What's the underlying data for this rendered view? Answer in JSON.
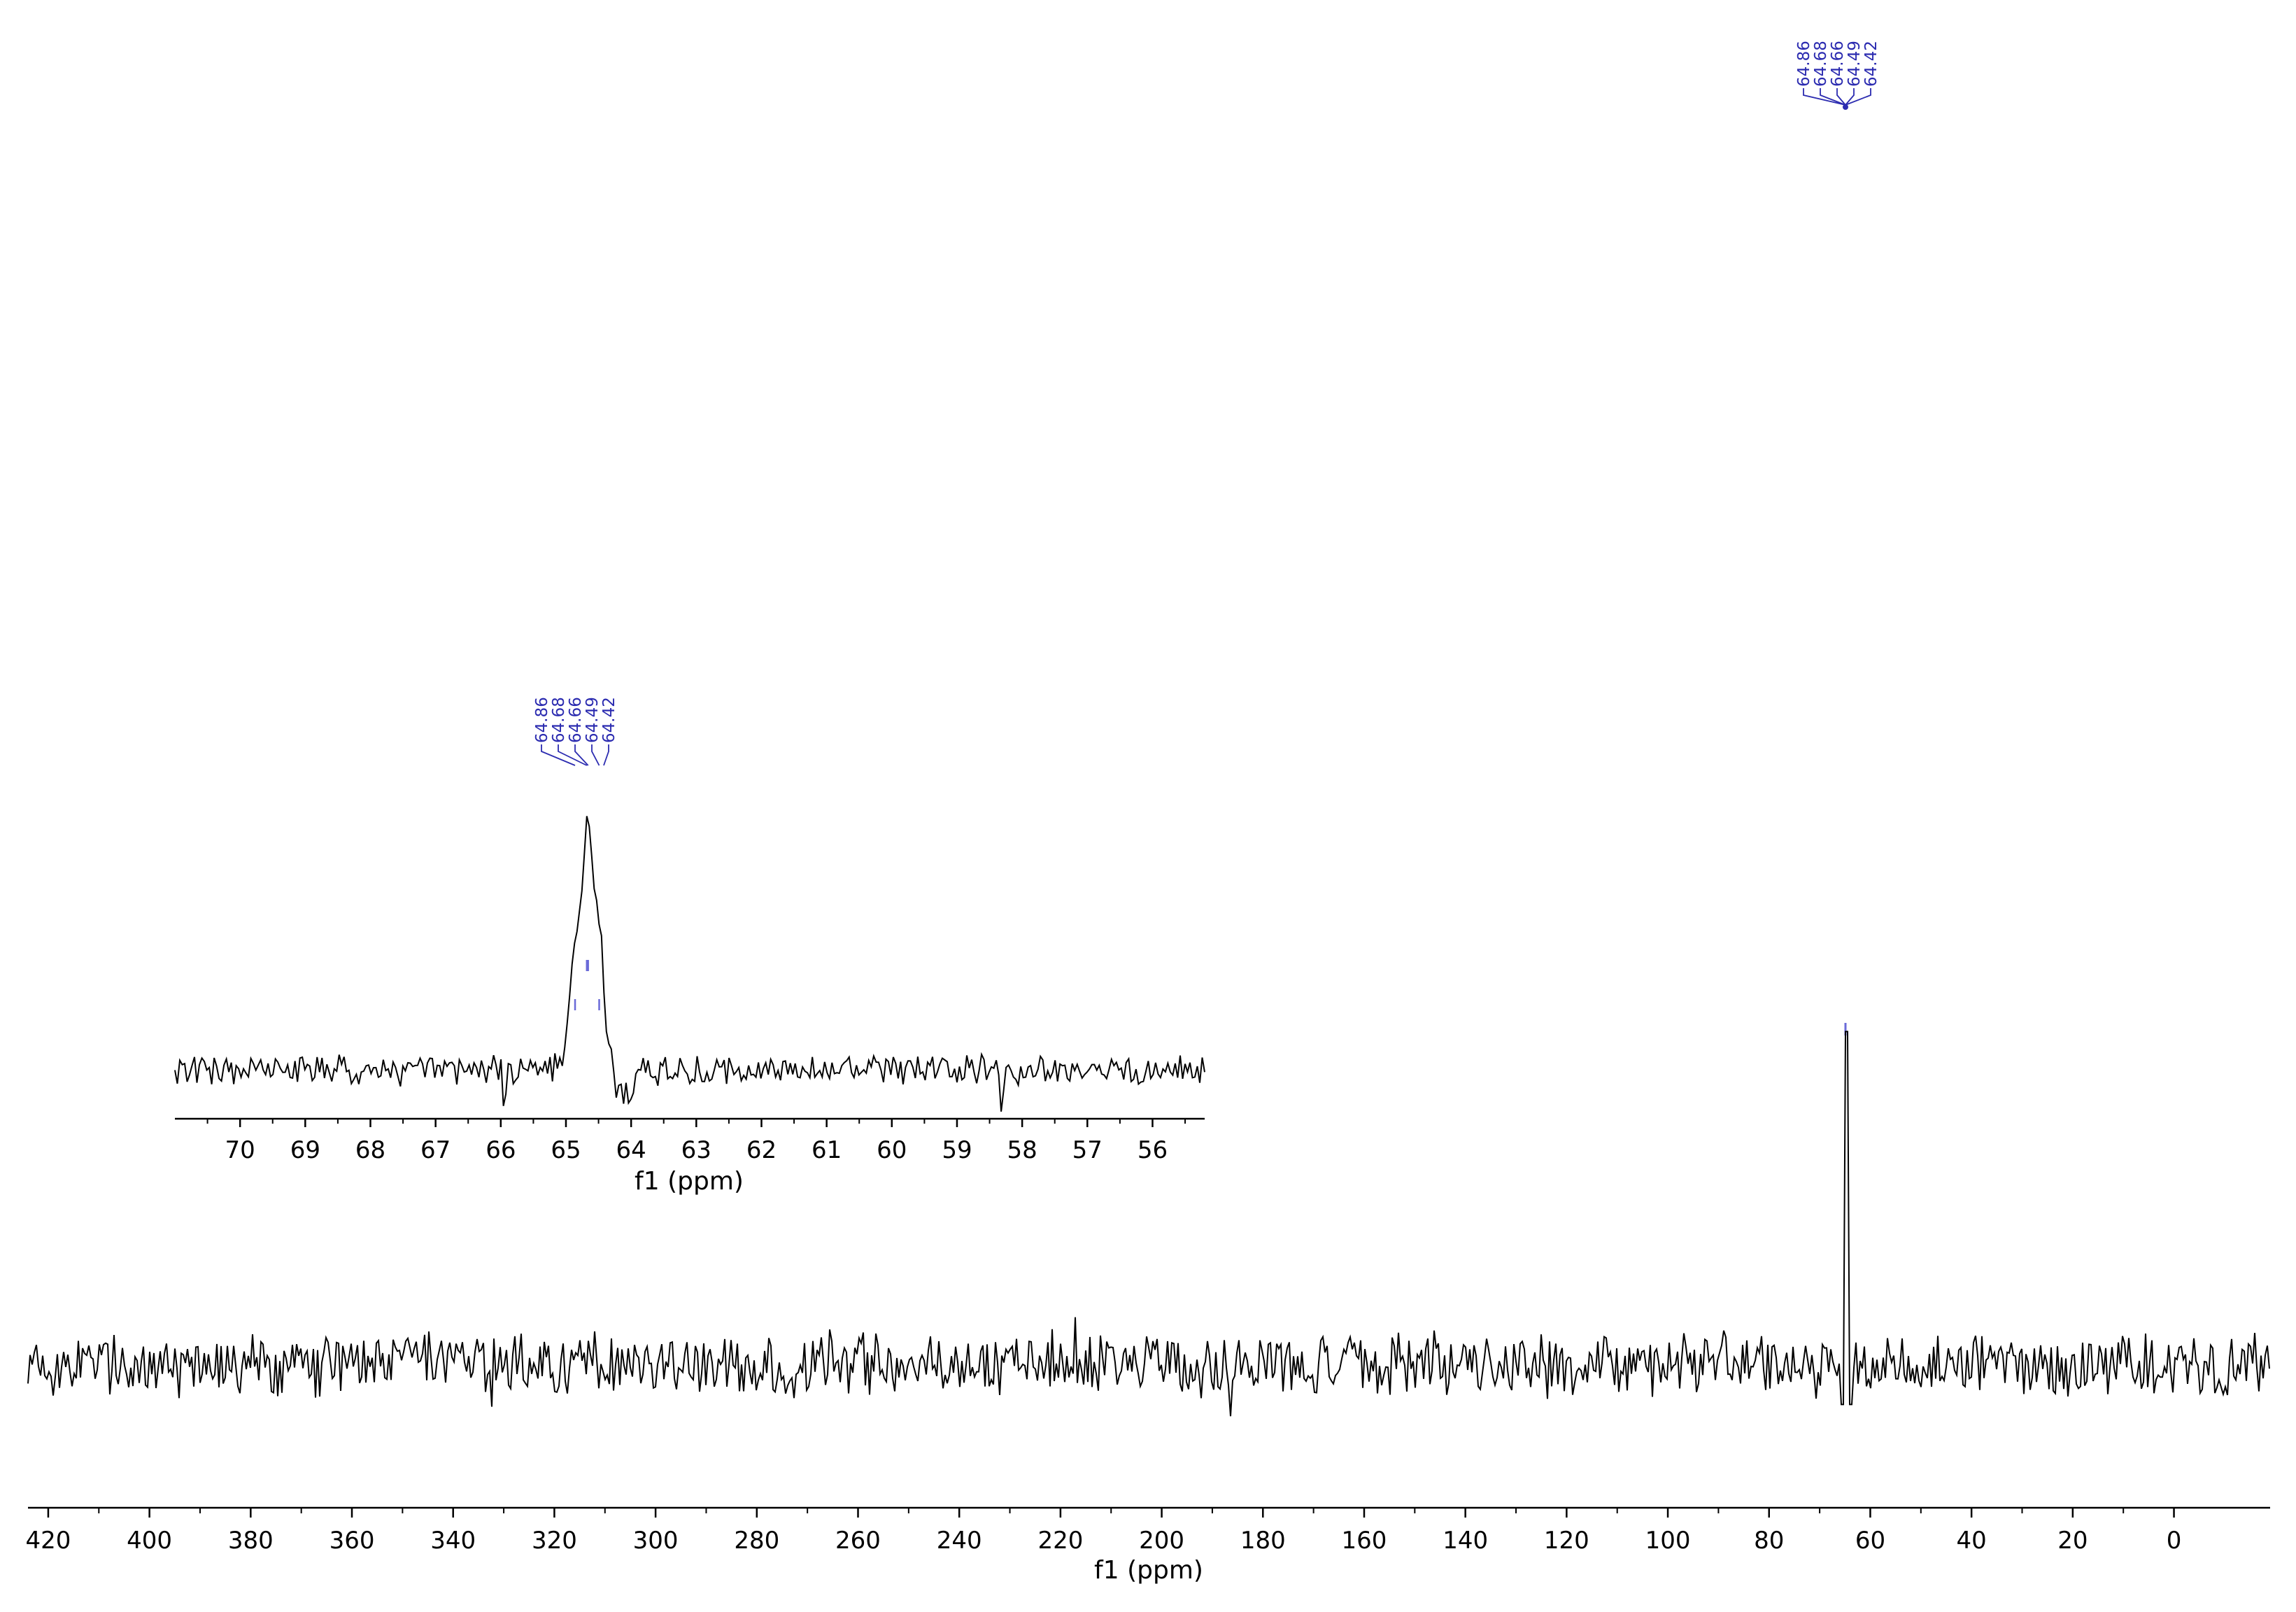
{
  "chart_data": [
    {
      "type": "line",
      "name": "main-spectrum",
      "xlabel": "f1 (ppm)",
      "xlim": [
        424,
        -19
      ],
      "x_reversed": true,
      "xticks": [
        420,
        400,
        380,
        360,
        340,
        320,
        300,
        280,
        260,
        240,
        220,
        200,
        180,
        160,
        140,
        120,
        100,
        80,
        60,
        40,
        20,
        0
      ],
      "xtick_labels": [
        "420",
        "400",
        "380",
        "360",
        "340",
        "320",
        "300",
        "280",
        "260",
        "240",
        "220",
        "200",
        "180",
        "160",
        "140",
        "120",
        "100",
        "80",
        "60",
        "40",
        "20",
        "0"
      ],
      "peak": {
        "x": 64.66,
        "height": 11.6
      },
      "noise_amplitude": 1.0,
      "peak_labels": [
        "64.86",
        "64.68",
        "64.66",
        "64.49",
        "64.42"
      ]
    },
    {
      "type": "line",
      "name": "inset-expansion",
      "xlabel": "f1 (ppm)",
      "xlim": [
        71.0,
        55.2
      ],
      "x_reversed": true,
      "xticks": [
        70,
        69,
        68,
        67,
        66,
        65,
        64,
        63,
        62,
        61,
        60,
        59,
        58,
        57,
        56
      ],
      "xtick_labels": [
        "70",
        "69",
        "68",
        "67",
        "66",
        "65",
        "64",
        "63",
        "62",
        "61",
        "60",
        "59",
        "58",
        "57",
        "56"
      ],
      "peaks": [
        {
          "x": 64.86,
          "height": 4.8
        },
        {
          "x": 64.66,
          "height": 9.0
        },
        {
          "x": 64.49,
          "height": 4.9
        }
      ],
      "noise_amplitude": 0.8,
      "peak_labels": [
        "64.86",
        "64.68",
        "64.66",
        "64.49",
        "64.42"
      ]
    }
  ],
  "colors": {
    "trace": "#000000",
    "axis": "#000000",
    "peak_label": "#2b2bb0",
    "peak_marker": "#6a6ad8"
  }
}
